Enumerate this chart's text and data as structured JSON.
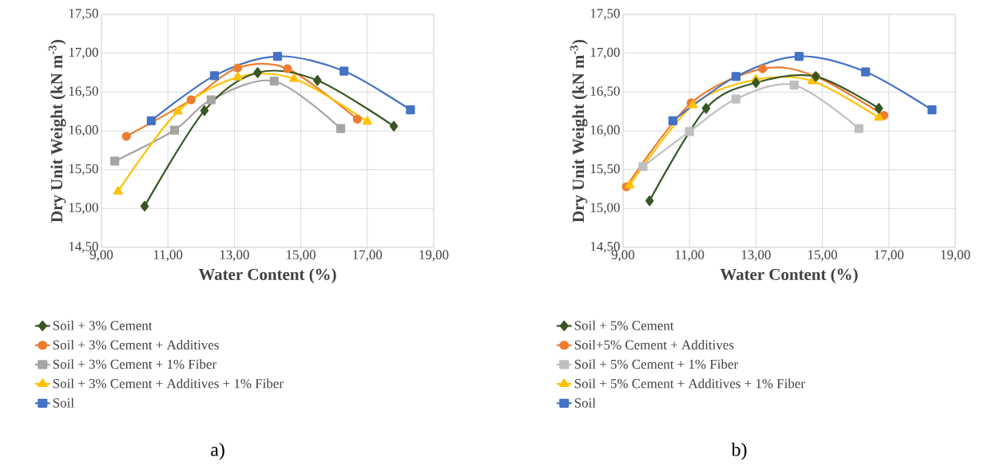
{
  "chart_data": [
    {
      "type": "line",
      "xlabel": "Water Content (%)",
      "ylabel": "Dry Unit Weight (kN m$^{-3}$)",
      "xlim": [
        9,
        19
      ],
      "ylim": [
        14.5,
        17.5
      ],
      "xticks": [
        {
          "value": 9,
          "label": "9,00"
        },
        {
          "value": 11,
          "label": "11,00"
        },
        {
          "value": 13,
          "label": "13,00"
        },
        {
          "value": 15,
          "label": "15,00"
        },
        {
          "value": 17,
          "label": "17,00"
        },
        {
          "value": 19,
          "label": "19,00"
        }
      ],
      "yticks": [
        {
          "value": 14.5,
          "label": "14,50"
        },
        {
          "value": 15,
          "label": "15,00"
        },
        {
          "value": 15.5,
          "label": "15,50"
        },
        {
          "value": 16,
          "label": "16,00"
        },
        {
          "value": 16.5,
          "label": "16,50"
        },
        {
          "value": 17,
          "label": "17,00"
        },
        {
          "value": 17.5,
          "label": "17,50"
        }
      ],
      "grid": true,
      "legend": "bottom",
      "annotations": [
        "a)"
      ],
      "series": [
        {
          "name": "Soil + 3% Cement",
          "color": "#375623",
          "marker": "diamond",
          "x": [
            10.3,
            12.1,
            13.7,
            15.5,
            17.8
          ],
          "values": [
            15.03,
            16.26,
            16.75,
            16.65,
            16.06
          ]
        },
        {
          "name": "Soil + 3% Cement + Additives",
          "color": "#ed7d31",
          "marker": "circle",
          "x": [
            9.75,
            11.7,
            13.1,
            14.6,
            16.7
          ],
          "values": [
            15.93,
            16.4,
            16.81,
            16.8,
            16.15
          ]
        },
        {
          "name": "Soil + 3% Cement + 1% Fiber",
          "color": "#a5a5a5",
          "marker": "square",
          "x": [
            9.4,
            11.2,
            12.3,
            14.2,
            16.2
          ],
          "values": [
            15.61,
            16.01,
            16.4,
            16.64,
            16.03
          ]
        },
        {
          "name": "Soil + 3% Cement + Additives + 1% Fiber",
          "color": "#ffc000",
          "marker": "triangle",
          "x": [
            9.5,
            11.3,
            13.1,
            14.8,
            17.0
          ],
          "values": [
            15.22,
            16.25,
            16.69,
            16.67,
            16.12
          ]
        },
        {
          "name": "Soil",
          "color": "#4472c4",
          "marker": "square",
          "x": [
            10.5,
            12.4,
            14.3,
            16.3,
            18.3
          ],
          "values": [
            16.13,
            16.71,
            16.96,
            16.77,
            16.27
          ]
        }
      ]
    },
    {
      "type": "line",
      "xlabel": "Water Content (%)",
      "ylabel": "Dry Unit Weight (kN m$^{-3}$)",
      "xlim": [
        9,
        19
      ],
      "ylim": [
        14.5,
        17.5
      ],
      "xticks": [
        {
          "value": 9,
          "label": "9,00"
        },
        {
          "value": 11,
          "label": "11,00"
        },
        {
          "value": 13,
          "label": "13,00"
        },
        {
          "value": 15,
          "label": "15,00"
        },
        {
          "value": 17,
          "label": "17,00"
        },
        {
          "value": 19,
          "label": "19,00"
        }
      ],
      "yticks": [
        {
          "value": 14.5,
          "label": "14,50"
        },
        {
          "value": 15,
          "label": "15,00"
        },
        {
          "value": 15.5,
          "label": "15,50"
        },
        {
          "value": 16,
          "label": "16,00"
        },
        {
          "value": 16.5,
          "label": "16,50"
        },
        {
          "value": 17,
          "label": "17,00"
        },
        {
          "value": 17.5,
          "label": "17,50"
        }
      ],
      "grid": true,
      "legend": "bottom",
      "annotations": [
        "b)"
      ],
      "series": [
        {
          "name": "Soil + 5% Cement",
          "color": "#375623",
          "marker": "diamond",
          "x": [
            9.8,
            11.5,
            13.0,
            14.8,
            16.7
          ],
          "values": [
            15.1,
            16.29,
            16.62,
            16.7,
            16.29
          ]
        },
        {
          "name": "Soil+5%  Cement + Additives",
          "color": "#ed7d31",
          "marker": "circle",
          "x": [
            9.1,
            11.05,
            13.2,
            14.8,
            16.85
          ],
          "values": [
            15.28,
            16.36,
            16.8,
            16.7,
            16.2
          ]
        },
        {
          "name": "Soil + 5% Cement + 1% Fiber",
          "color": "#bfbfbf",
          "marker": "square",
          "x": [
            9.6,
            11.0,
            12.4,
            14.15,
            16.1
          ],
          "values": [
            15.54,
            15.99,
            16.41,
            16.59,
            16.03
          ]
        },
        {
          "name": "Soil + 5% Cement + Additives + 1% Fiber",
          "color": "#ffc000",
          "marker": "triangle",
          "x": [
            9.2,
            11.1,
            13.0,
            14.7,
            16.7
          ],
          "values": [
            15.3,
            16.33,
            16.66,
            16.64,
            16.17
          ]
        },
        {
          "name": "Soil",
          "color": "#4472c4",
          "marker": "square",
          "x": [
            10.5,
            12.4,
            14.3,
            16.3,
            18.3
          ],
          "values": [
            16.13,
            16.7,
            16.96,
            16.76,
            16.27
          ]
        }
      ]
    }
  ]
}
